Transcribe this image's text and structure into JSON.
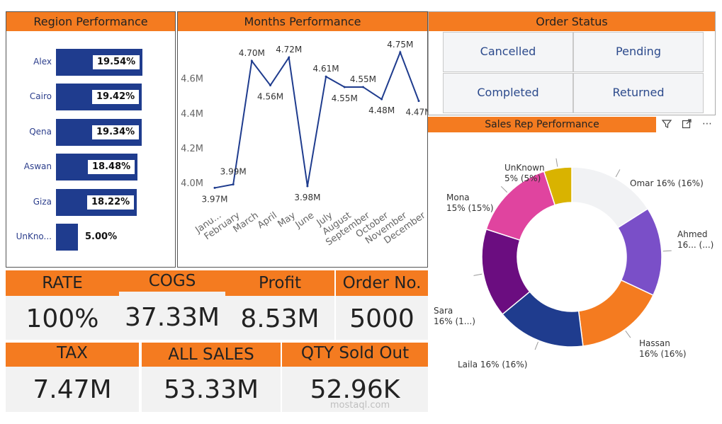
{
  "region": {
    "title": "Region Performance",
    "items": [
      {
        "name": "Alex",
        "pct": 19.54,
        "label": "19.54%"
      },
      {
        "name": "Cairo",
        "pct": 19.42,
        "label": "19.42%"
      },
      {
        "name": "Qena",
        "pct": 19.34,
        "label": "19.34%"
      },
      {
        "name": "Aswan",
        "pct": 18.48,
        "label": "18.48%"
      },
      {
        "name": "Giza",
        "pct": 18.22,
        "label": "18.22%"
      },
      {
        "name": "UnKno...",
        "pct": 5.0,
        "label": "5.00%"
      }
    ]
  },
  "months": {
    "title": "Months Performance"
  },
  "order_status": {
    "title": "Order Status",
    "buttons": [
      "Cancelled",
      "Pending",
      "Completed",
      "Returned"
    ]
  },
  "sales_rep": {
    "title": "Sales Rep Performance",
    "filter_icon": "filter-icon",
    "focus_icon": "focus-mode-icon",
    "more_icon": "more-options-icon"
  },
  "kpis": {
    "rate": {
      "label": "RATE",
      "value": "100%"
    },
    "cogs": {
      "label": "COGS",
      "value": "37.33M"
    },
    "profit": {
      "label": "Profit",
      "value": "8.53M"
    },
    "order_no": {
      "label": "Order No.",
      "value": "5000"
    },
    "tax": {
      "label": "TAX",
      "value": "7.47M"
    },
    "all_sales": {
      "label": "ALL SALES",
      "value": "53.33M"
    },
    "qty_sold": {
      "label": "QTY Sold Out",
      "value": "52.96K"
    }
  },
  "watermark": {
    "text": "mostaql.com"
  },
  "colors": {
    "accent": "#f47b20",
    "bar": "#1f3c8e",
    "line": "#1f3c8e"
  },
  "chart_data": [
    {
      "type": "bar",
      "title": "Region Performance",
      "categories": [
        "Alex",
        "Cairo",
        "Qena",
        "Aswan",
        "Giza",
        "UnKno..."
      ],
      "values": [
        19.54,
        19.42,
        19.34,
        18.48,
        18.22,
        5.0
      ],
      "unit": "%"
    },
    {
      "type": "line",
      "title": "Months Performance",
      "categories": [
        "January",
        "February",
        "March",
        "April",
        "May",
        "June",
        "July",
        "August",
        "September",
        "October",
        "November",
        "December"
      ],
      "tick_labels": [
        "Janu...",
        "February",
        "March",
        "April",
        "May",
        "June",
        "July",
        "August",
        "September",
        "October",
        "November",
        "December"
      ],
      "values": [
        3.97,
        3.99,
        4.7,
        4.56,
        4.72,
        3.98,
        4.61,
        4.55,
        4.55,
        4.48,
        4.75,
        4.47
      ],
      "data_labels": [
        "3.97M",
        "3.99M",
        "4.70M",
        "4.56M",
        "4.72M",
        "3.98M",
        "4.61M",
        "4.55M",
        "4.55M",
        "4.48M",
        "4.75M",
        "4.47M"
      ],
      "yticks": [
        "4.0M",
        "4.2M",
        "4.4M",
        "4.6M"
      ],
      "ytick_values": [
        4.0,
        4.2,
        4.4,
        4.6
      ],
      "ylim": [
        3.87,
        4.79
      ]
    },
    {
      "type": "pie",
      "title": "Sales Rep Performance",
      "donut": true,
      "slices": [
        {
          "name": "Omar",
          "value": 16,
          "label": "Omar 16% (16%)",
          "color": "#f1f2f4"
        },
        {
          "name": "Ahmed",
          "value": 16,
          "label": "Ahmed 16... (...)",
          "color": "#7a4fc8"
        },
        {
          "name": "Hassan",
          "value": 16,
          "label": "Hassan 16% (16%)",
          "color": "#f47b20"
        },
        {
          "name": "Laila",
          "value": 16,
          "label": "Laila 16% (16%)",
          "color": "#1f3c8e"
        },
        {
          "name": "Sara",
          "value": 16,
          "label": "Sara 16% (1...)",
          "color": "#6b0d80"
        },
        {
          "name": "Mona",
          "value": 15,
          "label": "Mona 15% (15%)",
          "color": "#e0449f"
        },
        {
          "name": "UnKnown",
          "value": 5,
          "label": "UnKnown 5% (5%)",
          "color": "#d9b300"
        }
      ]
    }
  ]
}
